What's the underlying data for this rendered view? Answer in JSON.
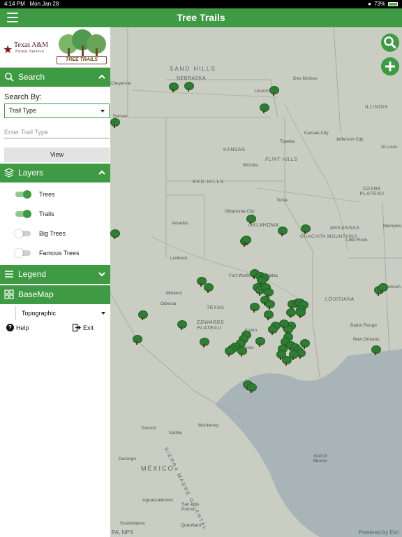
{
  "status_bar": {
    "time": "4:14 PM",
    "date": "Mon Jan 28",
    "battery": "73%"
  },
  "header": {
    "title": "Tree Trails"
  },
  "logo": {
    "line1": "Texas A&M",
    "line2": "Forest Service",
    "badge": "TREE TRAILS"
  },
  "search": {
    "header": "Search",
    "search_by_label": "Search By:",
    "select_value": "Trail Type",
    "input_placeholder": "Enter Trail Type",
    "view_button": "View"
  },
  "layers": {
    "header": "Layers",
    "items": [
      {
        "label": "Trees",
        "on": true
      },
      {
        "label": "Trails",
        "on": true
      },
      {
        "label": "Big Trees",
        "on": false
      },
      {
        "label": "Famous Trees",
        "on": false
      }
    ]
  },
  "legend": {
    "header": "Legend"
  },
  "basemap": {
    "header": "BaseMap",
    "select_value": "Topographic"
  },
  "footer": {
    "help": "Help",
    "exit": "Exit"
  },
  "map": {
    "labels": {
      "sand_hills": "SAND HILLS",
      "nebraska": "NEBRASKA",
      "des_moines": "Des Moines",
      "lincoln": "Lincoln",
      "illinois": "ILLINOIS",
      "kansas_city": "Kansas City",
      "topeka": "Topeka",
      "jefferson_city": "Jefferson City",
      "st_louis": "St Louis",
      "kansas": "KANSAS",
      "flint_hills": "FLINT HILLS",
      "wichita": "Wichita",
      "red_hills": "RED HILLS",
      "ozark_plateau": "OZARK PLATEAU",
      "tulsa": "Tulsa",
      "oklahoma_city": "Oklahoma City",
      "oklahoma": "OKLAHOMA",
      "amarillo": "Amarillo",
      "arkansas": "ARKANSAS",
      "memphis": "Memphis",
      "ouachita": "OUACHITA MOUNTAINS",
      "little_rock": "Little Rock",
      "lubbock": "Lubbock",
      "fort_worth": "Fort Worth",
      "dallas": "Dallas",
      "midland": "Midland",
      "odessa": "Odessa",
      "texas": "TEXAS",
      "louisiana": "LOUISIANA",
      "jackson": "Jackson",
      "edwards_plateau": "EDWARDS PLATEAU",
      "austin": "Austin",
      "baton_rouge": "Baton Rouge",
      "new_orleans": "New Orleans",
      "san_antonio": "San Antonio",
      "torreon": "Torreón",
      "monterrey": "Monterrey",
      "saltillo": "Saltillo",
      "sierra_madre": "SIERRA MADRE ORIENTAL",
      "durango": "Durango",
      "mexico": "MÉXICO",
      "gulf_of_mexico": "Gulf of Mexico",
      "aguascalientes": "Aguascalientes",
      "san_luis": "San Luis Potosí",
      "guadalajara": "Guadalajara",
      "queretaro": "Querétaro",
      "cheyenne": "Cheyenne",
      "denver": "Denver"
    },
    "attribution_left": "PA, NPS",
    "attribution_right": "Powered by Esri"
  }
}
